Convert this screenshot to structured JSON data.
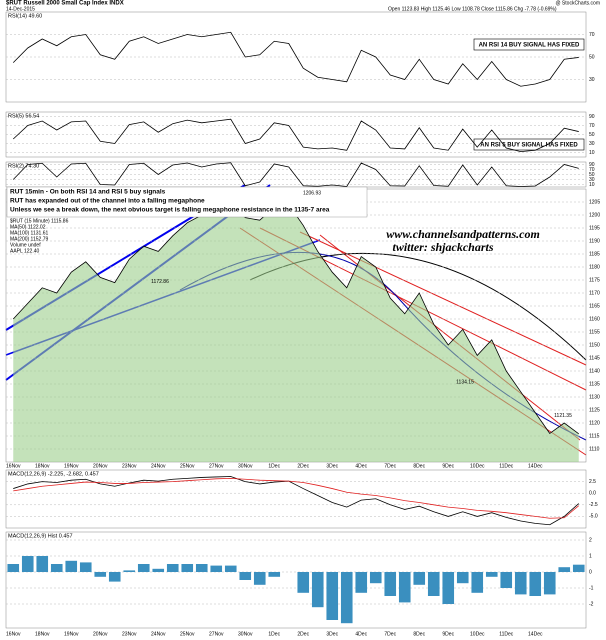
{
  "header": {
    "symbol": "$RUT Russell 2000 Small Cap Index INDX",
    "date": "14-Dec-2015",
    "quote": "Open 1123.83 High 1125.46 Low 1108.78 Close 1115.86 Chg -7.78 (-0.69%)",
    "credit": "@ StockCharts.com"
  },
  "chart_data": [
    {
      "type": "line",
      "title": "RSI(14) 49.60",
      "annotation": "AN RSI 14 BUY SIGNAL HAS FIXED",
      "ylim": [
        10,
        90
      ],
      "yticks": [
        30,
        50,
        70
      ],
      "grid": true,
      "series": [
        {
          "color": "#000000",
          "values": [
            45,
            58,
            66,
            60,
            68,
            70,
            52,
            48,
            64,
            68,
            62,
            66,
            70,
            68,
            70,
            72,
            50,
            52,
            64,
            62,
            40,
            32,
            30,
            28,
            56,
            50,
            34,
            30,
            48,
            30,
            26,
            44,
            30,
            46,
            30,
            24,
            26,
            30,
            48,
            49.6
          ]
        }
      ]
    },
    {
      "type": "line",
      "title": "RSI(5) 56.54",
      "annotation": "AN RSI 5 BUY SIGNAL HAS FIXED",
      "ylim": [
        0,
        100
      ],
      "yticks": [
        10,
        30,
        50,
        70,
        90
      ],
      "grid": true,
      "series": [
        {
          "color": "#000000",
          "values": [
            40,
            70,
            80,
            60,
            78,
            80,
            35,
            30,
            72,
            78,
            55,
            74,
            82,
            76,
            80,
            84,
            30,
            40,
            76,
            70,
            22,
            18,
            20,
            15,
            80,
            60,
            20,
            18,
            65,
            20,
            15,
            62,
            22,
            60,
            20,
            12,
            15,
            30,
            64,
            56.54
          ]
        }
      ]
    },
    {
      "type": "line",
      "title": "RSI(2) 74.30",
      "ylim": [
        0,
        100
      ],
      "yticks": [
        10,
        30,
        50,
        70,
        90
      ],
      "grid": true,
      "series": [
        {
          "color": "#000000",
          "values": [
            30,
            90,
            95,
            40,
            92,
            95,
            10,
            8,
            90,
            95,
            50,
            88,
            96,
            80,
            92,
            97,
            5,
            20,
            92,
            80,
            5,
            3,
            8,
            2,
            96,
            70,
            5,
            4,
            85,
            6,
            3,
            88,
            8,
            80,
            5,
            2,
            4,
            40,
            90,
            74.3
          ]
        }
      ]
    },
    {
      "type": "line",
      "notes": [
        "RUT 15min - On both RSI 14 and RSI 5 buy signals",
        "RUT has expanded out of the channel into a falling megaphone",
        "Unless we see a break down, the next obvious target is falling megaphone resistance in the 1135-7 area"
      ],
      "legend": [
        "$RUT (15 Minute) 1115.86",
        "MA(50) 1122.02",
        "MA(100) 1131.61",
        "MA(200) 1152.79",
        "Volume undef",
        "AAPL 122.40"
      ],
      "watermark": [
        "www.channelsandpatterns.com",
        "twitter: shjackcharts"
      ],
      "price_labels": [
        1206.93,
        1172.86,
        1134.15,
        1121.35
      ],
      "ylim": [
        1105,
        1210
      ],
      "yticks": [
        1110,
        1115,
        1120,
        1125,
        1130,
        1135,
        1140,
        1145,
        1150,
        1155,
        1160,
        1165,
        1170,
        1175,
        1180,
        1185,
        1190,
        1195,
        1200,
        1205
      ],
      "grid": true,
      "categories": [
        "16Nov",
        null,
        "18Nov",
        null,
        "19Nov",
        null,
        "20Nov",
        null,
        "23Nov",
        null,
        "24Nov",
        null,
        "25Nov",
        null,
        "27Nov",
        null,
        "30Nov",
        null,
        "1Dec",
        null,
        "2Dec",
        null,
        "3Dec",
        null,
        "4Dec",
        null,
        "7Dec",
        null,
        "8Dec",
        null,
        "9Dec",
        null,
        "10Dec",
        null,
        "11Dec",
        null,
        "14Dec",
        null,
        null,
        null
      ],
      "series": [
        {
          "color": "#000000",
          "values": [
            1160,
            1166,
            1172,
            1170,
            1178,
            1182,
            1176,
            1174,
            1183,
            1188,
            1186,
            1192,
            1197,
            1200,
            1204,
            1206,
            1199,
            1198,
            1203,
            1204,
            1196,
            1186,
            1178,
            1172,
            1184,
            1180,
            1168,
            1162,
            1170,
            1158,
            1150,
            1156,
            1146,
            1152,
            1140,
            1132,
            1124,
            1116,
            1120,
            1115.86
          ]
        }
      ]
    },
    {
      "type": "line",
      "title": "MACD(12,26,9) -2.225, -2.682, 0.457",
      "ylim": [
        -7.5,
        5
      ],
      "yticks": [
        {
          "value": -5,
          "label": "-5.0"
        },
        {
          "value": -2.5,
          "label": "-2.5"
        },
        {
          "value": 0,
          "label": "0.0"
        },
        2.5
      ],
      "grid": true,
      "series": [
        {
          "color": "#000000",
          "values": [
            1,
            2,
            2.5,
            2.3,
            2.8,
            3,
            2,
            1.5,
            2.2,
            2.8,
            2.6,
            3,
            3.2,
            3.4,
            3.5,
            3.6,
            2.5,
            2,
            2.4,
            2.6,
            1,
            -0.5,
            -2,
            -3,
            -1.5,
            -1.2,
            -2.5,
            -3.5,
            -2.8,
            -4,
            -5,
            -4,
            -5,
            -4.2,
            -5.2,
            -6,
            -6.5,
            -6.8,
            -5,
            -2.225
          ]
        },
        {
          "color": "#e02020",
          "values": [
            0.5,
            1,
            1.5,
            1.8,
            2.1,
            2.4,
            2.3,
            2.1,
            2.1,
            2.3,
            2.4,
            2.5,
            2.7,
            2.9,
            3.1,
            3.2,
            3,
            2.8,
            2.7,
            2.6,
            2.3,
            1.7,
            1,
            0.2,
            -0.2,
            -0.5,
            -1,
            -1.6,
            -2,
            -2.5,
            -3,
            -3.3,
            -3.7,
            -3.9,
            -4.2,
            -4.6,
            -5,
            -5.4,
            -5.3,
            -2.682
          ]
        }
      ]
    },
    {
      "type": "bar",
      "title": "MACD(12,26,9) Hist 0.457",
      "color": "#3a8fbf",
      "ylim": [
        -3.5,
        2.5
      ],
      "yticks": [
        -2,
        -1,
        0,
        1,
        2
      ],
      "grid": true,
      "values": [
        0.5,
        1,
        1,
        0.5,
        0.7,
        0.6,
        -0.3,
        -0.6,
        0.1,
        0.5,
        0.2,
        0.5,
        0.5,
        0.5,
        0.4,
        0.4,
        -0.5,
        -0.8,
        -0.3,
        0,
        -1.3,
        -2.2,
        -3,
        -3.2,
        -1.3,
        -0.7,
        -1.5,
        -1.9,
        -0.8,
        -1.5,
        -2,
        -0.7,
        -1.3,
        -0.3,
        -1,
        -1.4,
        -1.5,
        -1.4,
        0.3,
        0.457
      ]
    }
  ]
}
